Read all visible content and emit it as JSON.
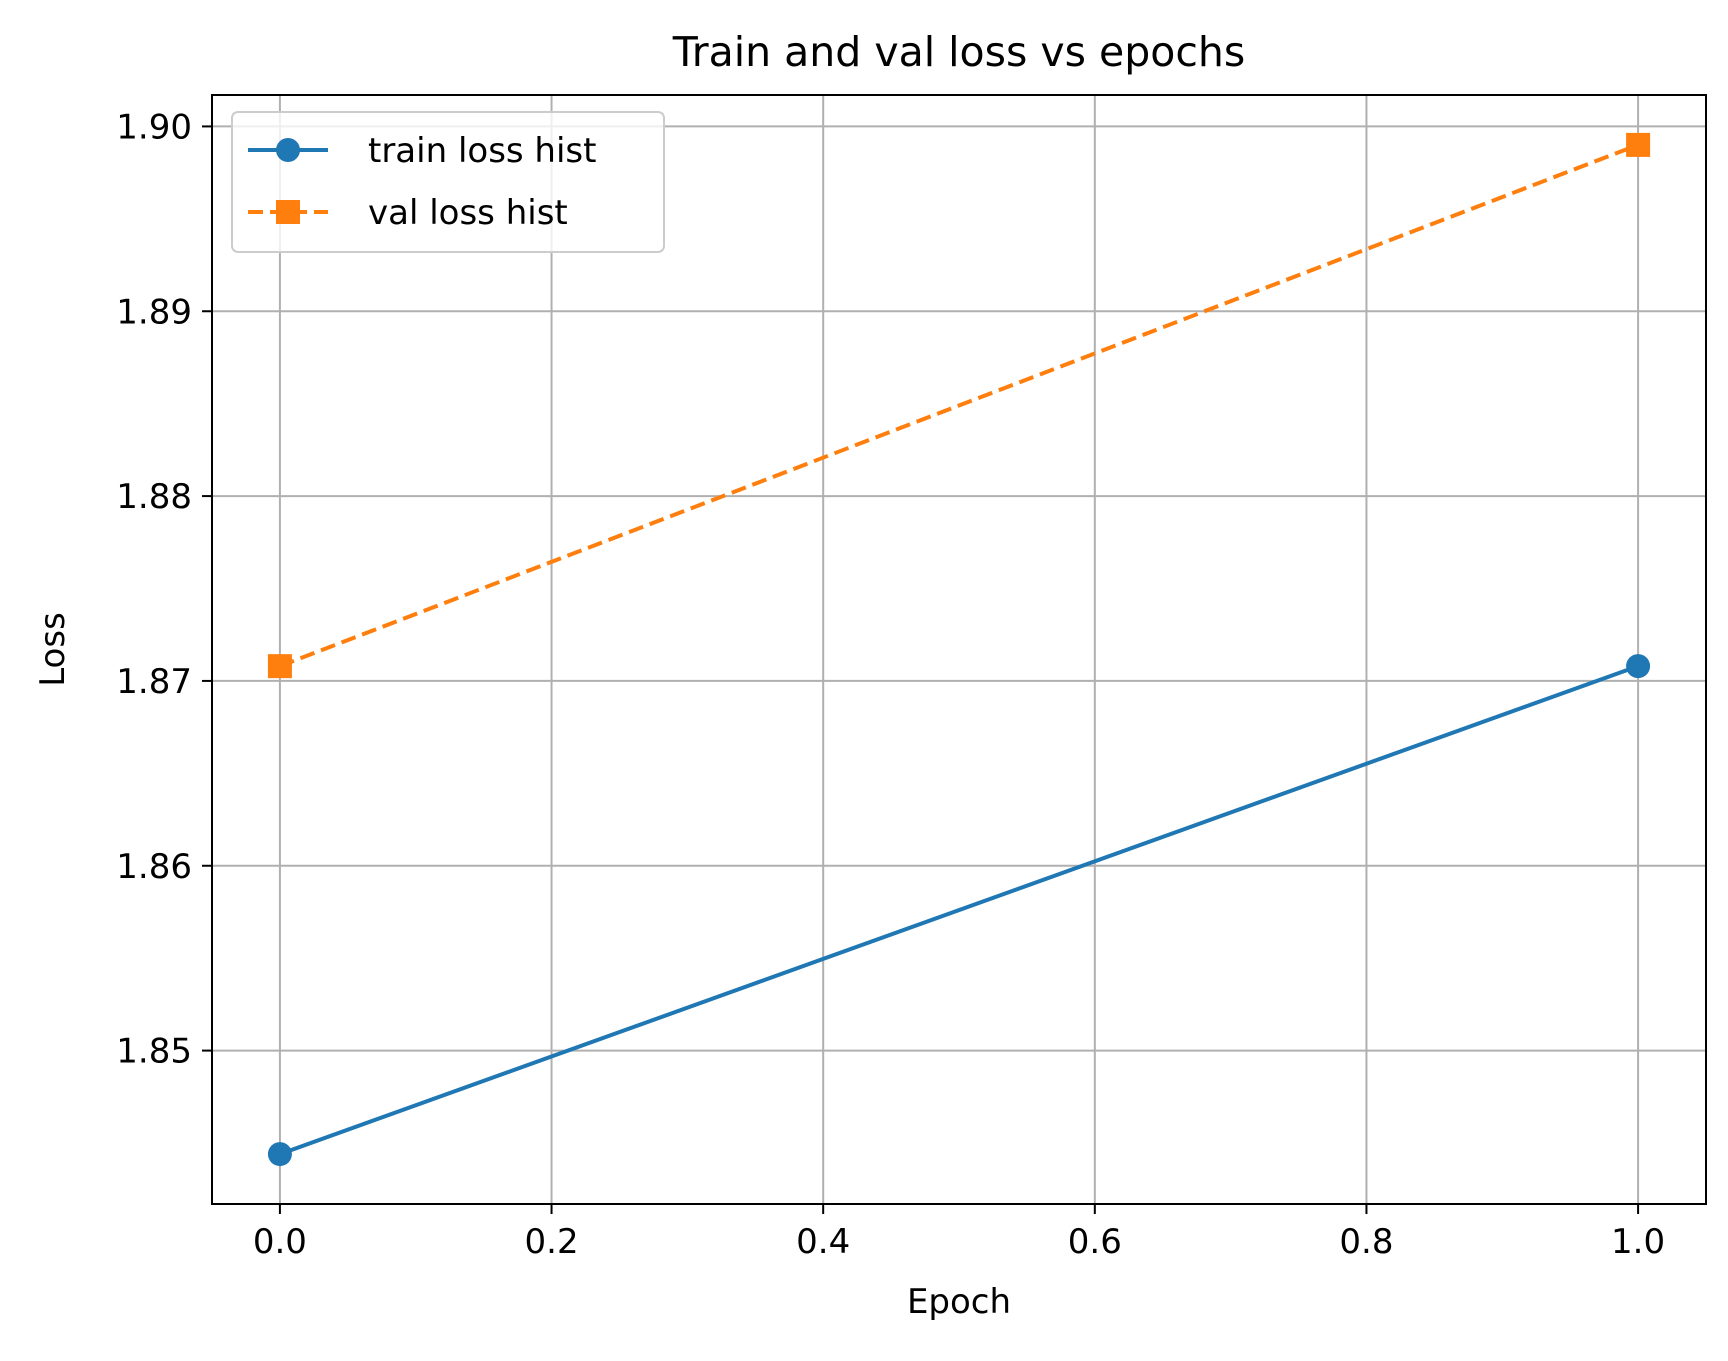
{
  "chart_data": {
    "type": "line",
    "title": "Train and val loss vs epochs",
    "xlabel": "Epoch",
    "ylabel": "Loss",
    "xlim": [
      -0.05,
      1.05
    ],
    "ylim": [
      1.8417,
      1.9017
    ],
    "xticks": [
      0.0,
      0.2,
      0.4,
      0.6,
      0.8,
      1.0
    ],
    "xtick_labels": [
      "0.0",
      "0.2",
      "0.4",
      "0.6",
      "0.8",
      "1.0"
    ],
    "yticks": [
      1.85,
      1.86,
      1.87,
      1.88,
      1.89,
      1.9
    ],
    "ytick_labels": [
      "1.85",
      "1.86",
      "1.87",
      "1.88",
      "1.89",
      "1.90"
    ],
    "grid": true,
    "legend_position": "top-left",
    "series": [
      {
        "name": "train loss hist",
        "x": [
          0,
          1
        ],
        "y": [
          1.8444,
          1.8708
        ],
        "color": "#1f77b4",
        "line_style": "solid",
        "marker": "circle"
      },
      {
        "name": "val loss hist",
        "x": [
          0,
          1
        ],
        "y": [
          1.8708,
          1.899
        ],
        "color": "#ff7f0e",
        "line_style": "dashed",
        "marker": "square"
      }
    ]
  }
}
